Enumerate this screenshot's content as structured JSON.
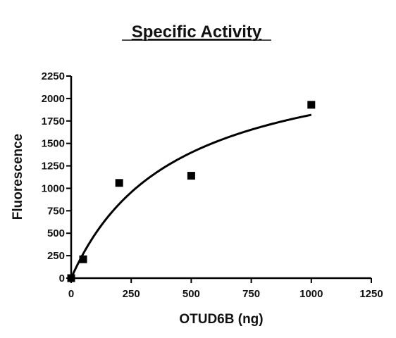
{
  "chart_data": {
    "type": "scatter",
    "title": "Specific Activity",
    "xlabel": "OTUD6B (ng)",
    "ylabel": "Fluorescence",
    "xlim": [
      0,
      1250
    ],
    "ylim": [
      0,
      2250
    ],
    "xticks": [
      0,
      250,
      500,
      750,
      1000,
      1250
    ],
    "yticks": [
      0,
      250,
      500,
      750,
      1000,
      1250,
      1500,
      1750,
      2000,
      2250
    ],
    "grid": false,
    "series": [
      {
        "x": [
          0,
          50,
          200,
          500,
          1000
        ],
        "y": [
          0,
          210,
          1060,
          1140,
          1930
        ],
        "marker": "square",
        "color": "#000000"
      }
    ],
    "fit": {
      "model": "hyperbolic",
      "vmax": 2600,
      "km": 430,
      "x_range": [
        0,
        1000
      ],
      "color": "#000000"
    }
  }
}
